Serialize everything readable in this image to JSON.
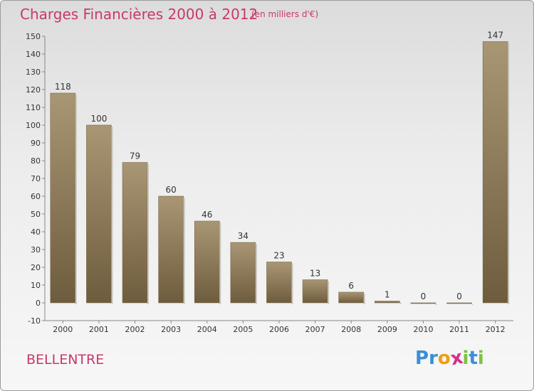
{
  "header": {
    "title": "Charges Financières 2000 à 2012",
    "subtitle": "(en milliers d'€)"
  },
  "commune": "BELLENTRE",
  "logo": {
    "text": "Proxiti",
    "letters": [
      {
        "char": "P",
        "color": "#3a8fd6"
      },
      {
        "char": "r",
        "color": "#3a8fd6"
      },
      {
        "char": "o",
        "color": "#f39c12"
      },
      {
        "char": "x",
        "color": "#d62f8a"
      },
      {
        "char": "i",
        "color": "#7cc243"
      },
      {
        "char": "t",
        "color": "#3a8fd6"
      },
      {
        "char": "i",
        "color": "#7cc243"
      }
    ]
  },
  "colors": {
    "bar_top": "#a89674",
    "bar_bottom": "#6e5c3e",
    "accent": "#c8386e"
  },
  "chart_data": {
    "type": "bar",
    "categories": [
      "2000",
      "2001",
      "2002",
      "2003",
      "2004",
      "2005",
      "2006",
      "2007",
      "2008",
      "2009",
      "2010",
      "2011",
      "2012"
    ],
    "values": [
      118,
      100,
      79,
      60,
      46,
      34,
      23,
      13,
      6,
      1,
      0,
      0,
      147
    ],
    "data_labels": [
      "118",
      "100",
      "79",
      "60",
      "46",
      "34",
      "23",
      "13",
      "6",
      "1",
      "0",
      "0",
      "147"
    ],
    "yticks": [
      -10,
      0,
      10,
      20,
      30,
      40,
      50,
      60,
      70,
      80,
      90,
      100,
      110,
      120,
      130,
      140,
      150
    ],
    "ylim": [
      -10,
      150
    ],
    "grid": false,
    "legend": "none",
    "title": "Charges Financières 2000 à 2012",
    "xlabel": "",
    "ylabel": ""
  }
}
